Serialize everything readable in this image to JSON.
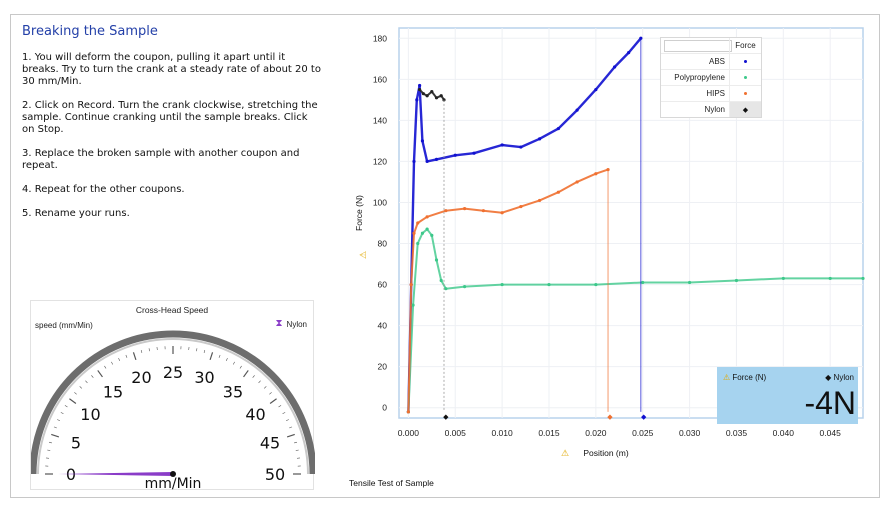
{
  "instructions": {
    "title": "Breaking the Sample",
    "steps": [
      "1.  You will deform the coupon, pulling it apart until it breaks.  Try to turn the crank at a steady rate of about 20 to 30 mm/Min.",
      "2.  Click on Record.  Turn the crank clockwise, stretching the sample.  Continue cranking until the sample breaks. Click on Stop.",
      "3.  Replace the broken sample with another coupon and repeat.",
      "4.  Repeat for the other coupons.",
      "5.  Rename your runs."
    ]
  },
  "gauge": {
    "title": "Cross-Head Speed",
    "unit_label": "speed (mm/Min)",
    "series_label": "Nylon",
    "unit": "mm/Min",
    "min": 0,
    "max": 50,
    "major_ticks": [
      0,
      5,
      10,
      15,
      20,
      25,
      30,
      35,
      40,
      45,
      50
    ],
    "value": 0,
    "needle_color": "#8a3cc8"
  },
  "meter": {
    "label": "Force (N)",
    "series": "Nylon",
    "value": "-4N"
  },
  "chart_caption": "Tensile Test of Sample",
  "legend": {
    "header": "Force",
    "items": [
      {
        "name": "ABS",
        "color": "#1010d0",
        "marker": "dot"
      },
      {
        "name": "Polypropylene",
        "color": "#3cc88a",
        "marker": "dot"
      },
      {
        "name": "HIPS",
        "color": "#f07030",
        "marker": "dot"
      },
      {
        "name": "Nylon",
        "color": "#111111",
        "marker": "diamond"
      }
    ]
  },
  "chart_data": {
    "type": "line",
    "xlabel": "Position (m)",
    "ylabel": "Force (N)",
    "xlim": [
      -0.001,
      0.0485
    ],
    "ylim": [
      -5,
      185
    ],
    "xticks": [
      0.0,
      0.005,
      0.01,
      0.015,
      0.02,
      0.025,
      0.03,
      0.035,
      0.04,
      0.045
    ],
    "xtick_labels": [
      "0.000",
      "0.005",
      "0.010",
      "0.015",
      "0.020",
      "0.025",
      "0.030",
      "0.035",
      "0.040",
      "0.045"
    ],
    "yticks": [
      0,
      20,
      40,
      60,
      80,
      100,
      120,
      140,
      160,
      180
    ],
    "grid": true,
    "legend_position": "top-right",
    "series": [
      {
        "name": "ABS",
        "color": "#1010d0",
        "x": [
          0.0,
          0.0003,
          0.0006,
          0.0009,
          0.0012,
          0.0015,
          0.002,
          0.003,
          0.005,
          0.007,
          0.01,
          0.012,
          0.014,
          0.016,
          0.018,
          0.02,
          0.022,
          0.0235,
          0.0248
        ],
        "y": [
          -2,
          60,
          120,
          150,
          157,
          130,
          120,
          121,
          123,
          124,
          128,
          127,
          131,
          136,
          145,
          155,
          166,
          173,
          180
        ]
      },
      {
        "name": "Polypropylene",
        "color": "#3cc88a",
        "x": [
          0.0,
          0.0005,
          0.001,
          0.0015,
          0.002,
          0.0025,
          0.003,
          0.0035,
          0.004,
          0.006,
          0.01,
          0.015,
          0.02,
          0.025,
          0.03,
          0.035,
          0.04,
          0.045,
          0.0485
        ],
        "y": [
          -2,
          50,
          80,
          85,
          87,
          84,
          72,
          62,
          58,
          59,
          60,
          60,
          60,
          61,
          61,
          62,
          63,
          63,
          63
        ]
      },
      {
        "name": "HIPS",
        "color": "#f07030",
        "x": [
          0.0,
          0.0003,
          0.0006,
          0.001,
          0.002,
          0.004,
          0.006,
          0.008,
          0.01,
          0.012,
          0.014,
          0.016,
          0.018,
          0.02,
          0.0213
        ],
        "y": [
          -2,
          60,
          85,
          90,
          93,
          96,
          97,
          96,
          95,
          98,
          101,
          105,
          110,
          114,
          116
        ]
      },
      {
        "name": "Nylon",
        "color": "#222222",
        "x": [
          0.0012,
          0.0016,
          0.002,
          0.0025,
          0.003,
          0.0035,
          0.0038
        ],
        "y": [
          155,
          153,
          152,
          154,
          151,
          152,
          150
        ]
      }
    ],
    "break_markers": [
      {
        "series": "Nylon",
        "x": 0.004,
        "y": -4
      },
      {
        "series": "HIPS",
        "x": 0.0215,
        "y": -4
      },
      {
        "series": "ABS",
        "x": 0.0251,
        "y": -4
      }
    ]
  }
}
